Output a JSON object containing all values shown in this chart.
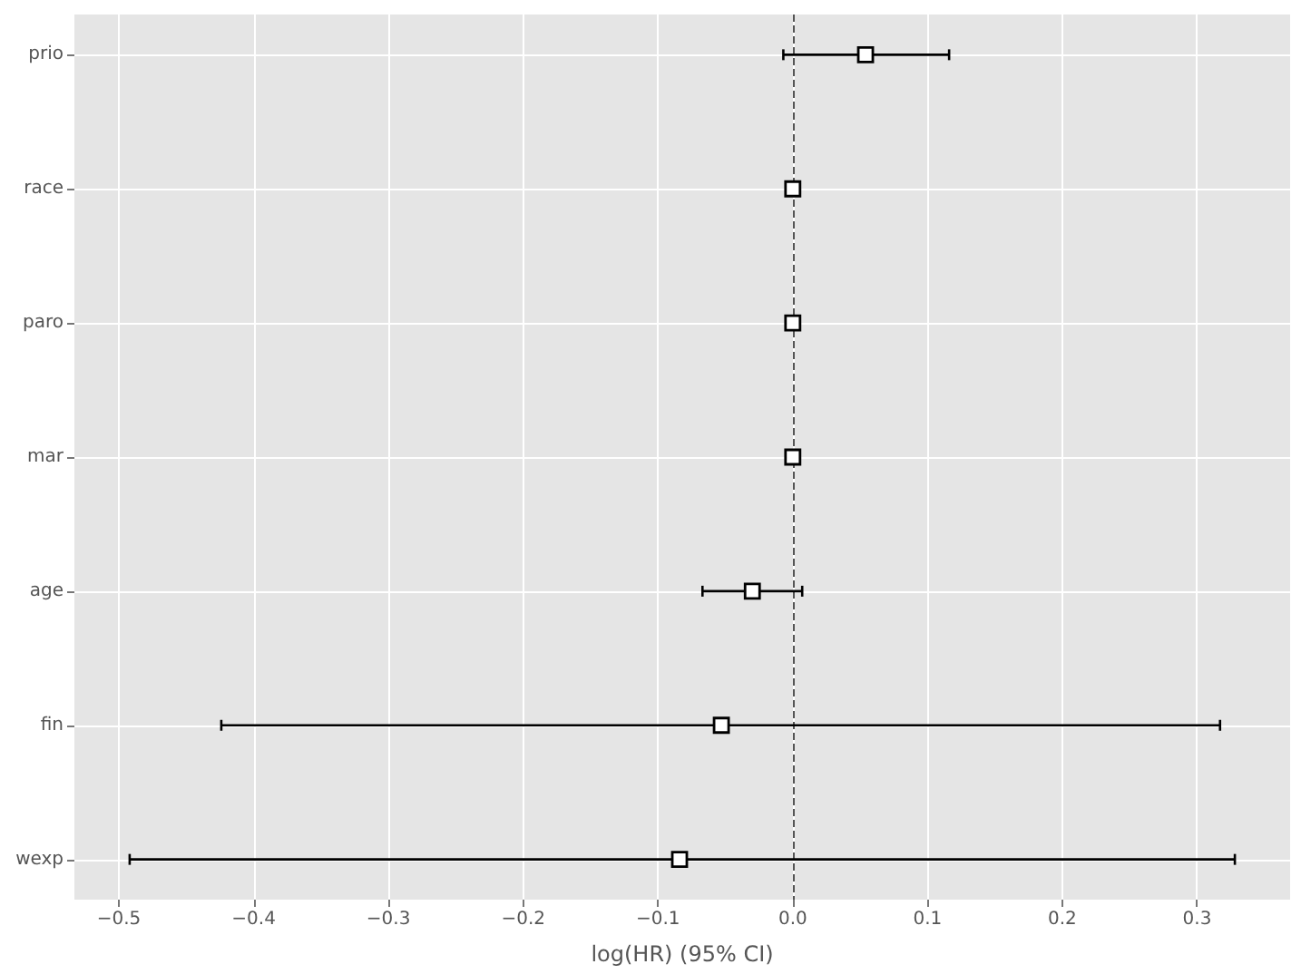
{
  "chart_data": {
    "type": "scatter",
    "orientation": "horizontal",
    "xlabel": "log(HR) (95% CI)",
    "categories": [
      "prio",
      "race",
      "paro",
      "mar",
      "age",
      "fin",
      "wexp"
    ],
    "values": [
      0.054,
      0,
      0,
      0,
      -0.03,
      -0.053,
      -0.084
    ],
    "errors": [
      [
        -0.007,
        0.116
      ],
      null,
      null,
      null,
      [
        -0.067,
        0.007
      ],
      [
        -0.424,
        0.317
      ],
      [
        -0.492,
        0.328
      ]
    ],
    "color": "#000000",
    "marker": "square",
    "grid": true,
    "xlim": [
      -0.533,
      0.369
    ],
    "xticks": [
      {
        "value": -0.5,
        "label": "−0.5"
      },
      {
        "value": -0.4,
        "label": "−0.4"
      },
      {
        "value": -0.3,
        "label": "−0.3"
      },
      {
        "value": -0.2,
        "label": "−0.2"
      },
      {
        "value": -0.1,
        "label": "−0.1"
      },
      {
        "value": 0,
        "label": "0.0"
      },
      {
        "value": 0.1,
        "label": "0.1"
      },
      {
        "value": 0.2,
        "label": "0.2"
      },
      {
        "value": 0.3,
        "label": "0.3"
      }
    ],
    "ref_lines": [
      {
        "axis": "x",
        "value": 0,
        "color": "#555555",
        "line_style": "dashed"
      }
    ]
  }
}
